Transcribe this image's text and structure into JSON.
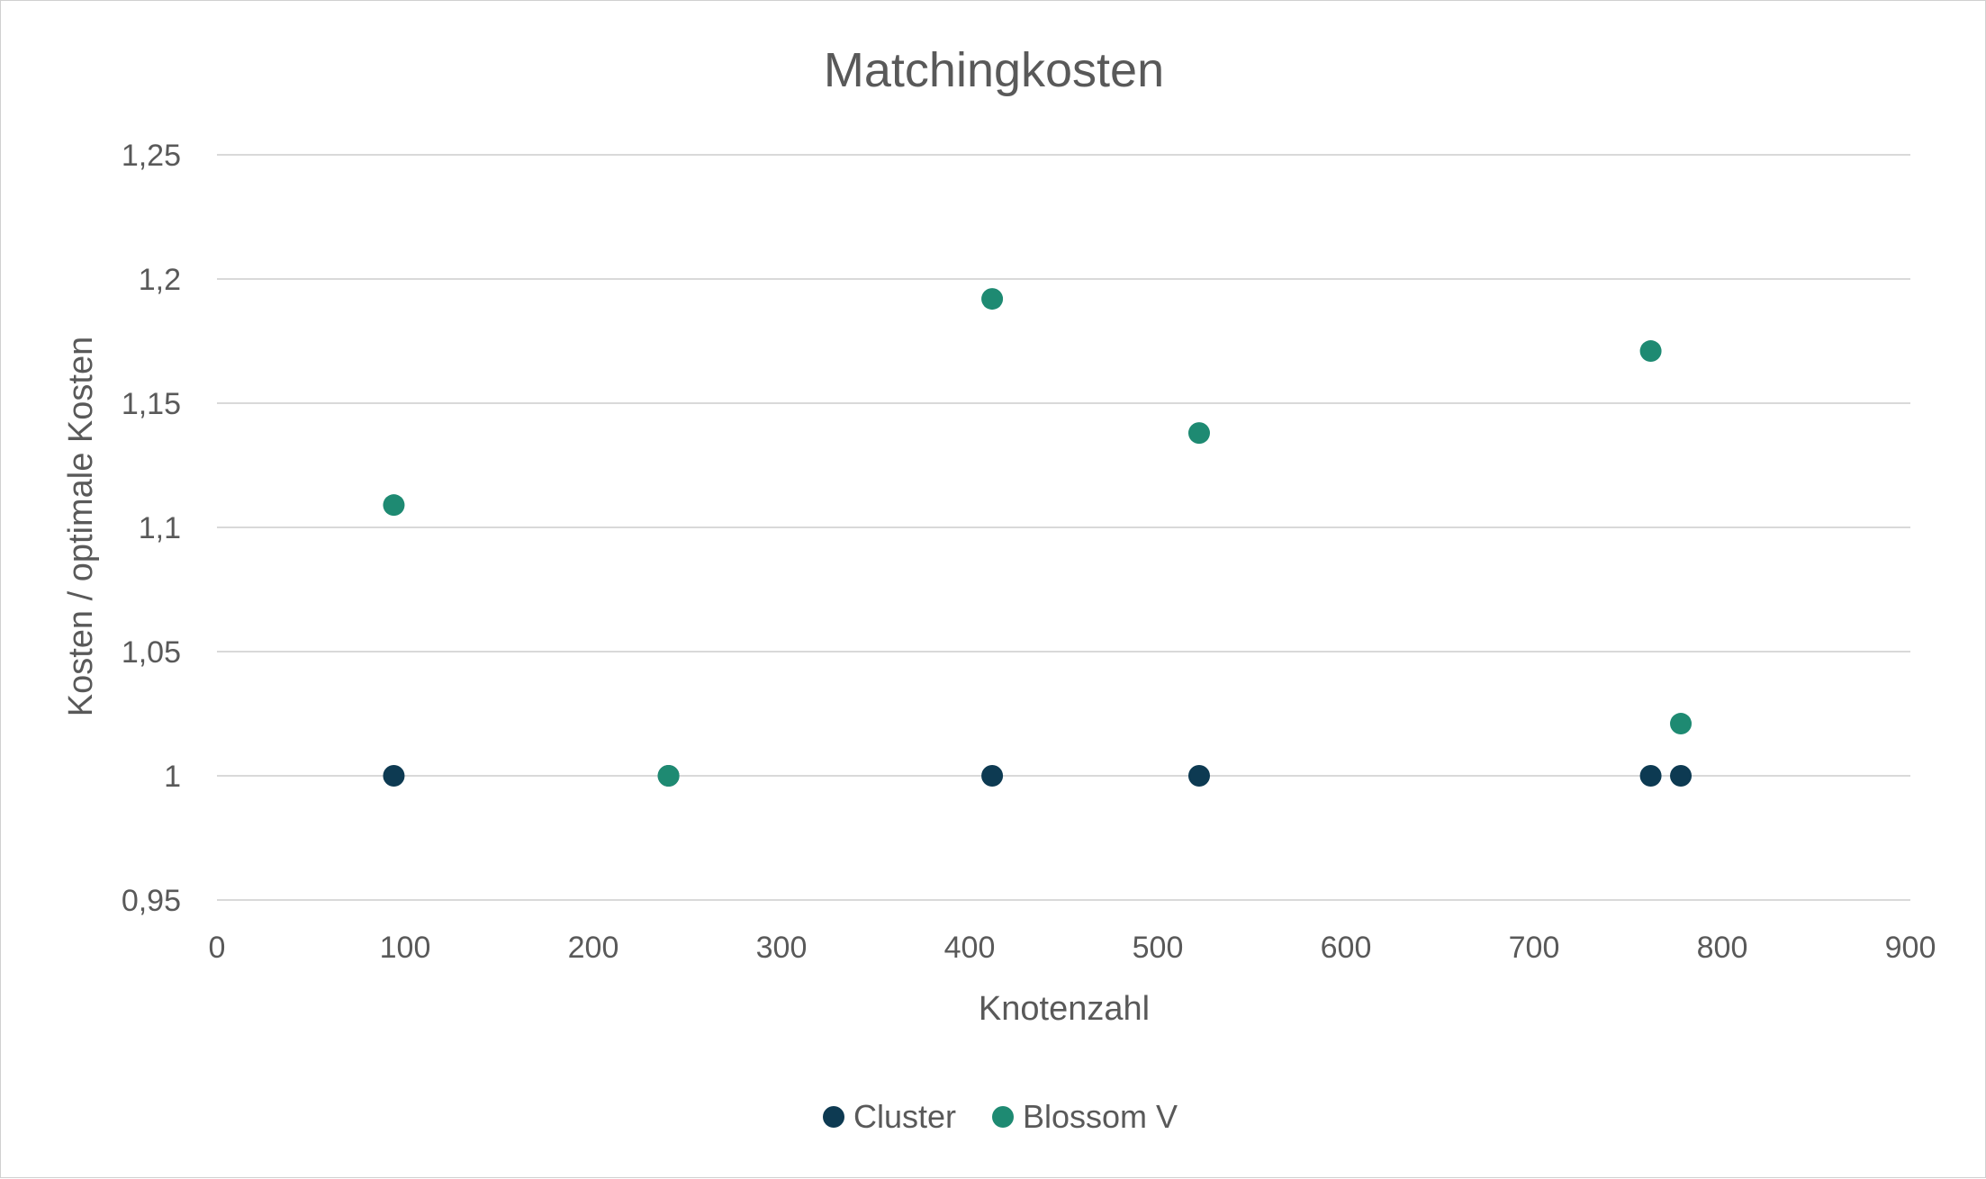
{
  "chart_data": {
    "type": "scatter",
    "title": "Matchingkosten",
    "xlabel": "Knotenzahl",
    "ylabel": "Kosten / optimale Kosten",
    "xlim": [
      0,
      900
    ],
    "ylim": [
      0.95,
      1.25
    ],
    "x_ticks": [
      0,
      100,
      200,
      300,
      400,
      500,
      600,
      700,
      800,
      900
    ],
    "x_tick_labels": [
      "0",
      "100",
      "200",
      "300",
      "400",
      "500",
      "600",
      "700",
      "800",
      "900"
    ],
    "y_ticks": [
      0.95,
      1.0,
      1.05,
      1.1,
      1.15,
      1.2,
      1.25
    ],
    "y_tick_labels": [
      "0,95",
      "1",
      "1,05",
      "1,1",
      "1,15",
      "1,2",
      "1,25"
    ],
    "grid": "horizontal",
    "legend_position": "bottom",
    "series": [
      {
        "name": "Cluster",
        "color": "#0d3a52",
        "points": [
          {
            "x": 94,
            "y": 1.0
          },
          {
            "x": 240,
            "y": 1.0
          },
          {
            "x": 412,
            "y": 1.0
          },
          {
            "x": 522,
            "y": 1.0
          },
          {
            "x": 762,
            "y": 1.0
          },
          {
            "x": 778,
            "y": 1.0
          }
        ]
      },
      {
        "name": "Blossom V",
        "color": "#1e8a72",
        "points": [
          {
            "x": 94,
            "y": 1.109
          },
          {
            "x": 240,
            "y": 1.0
          },
          {
            "x": 412,
            "y": 1.192
          },
          {
            "x": 522,
            "y": 1.138
          },
          {
            "x": 762,
            "y": 1.171
          },
          {
            "x": 778,
            "y": 1.021
          }
        ]
      }
    ]
  }
}
